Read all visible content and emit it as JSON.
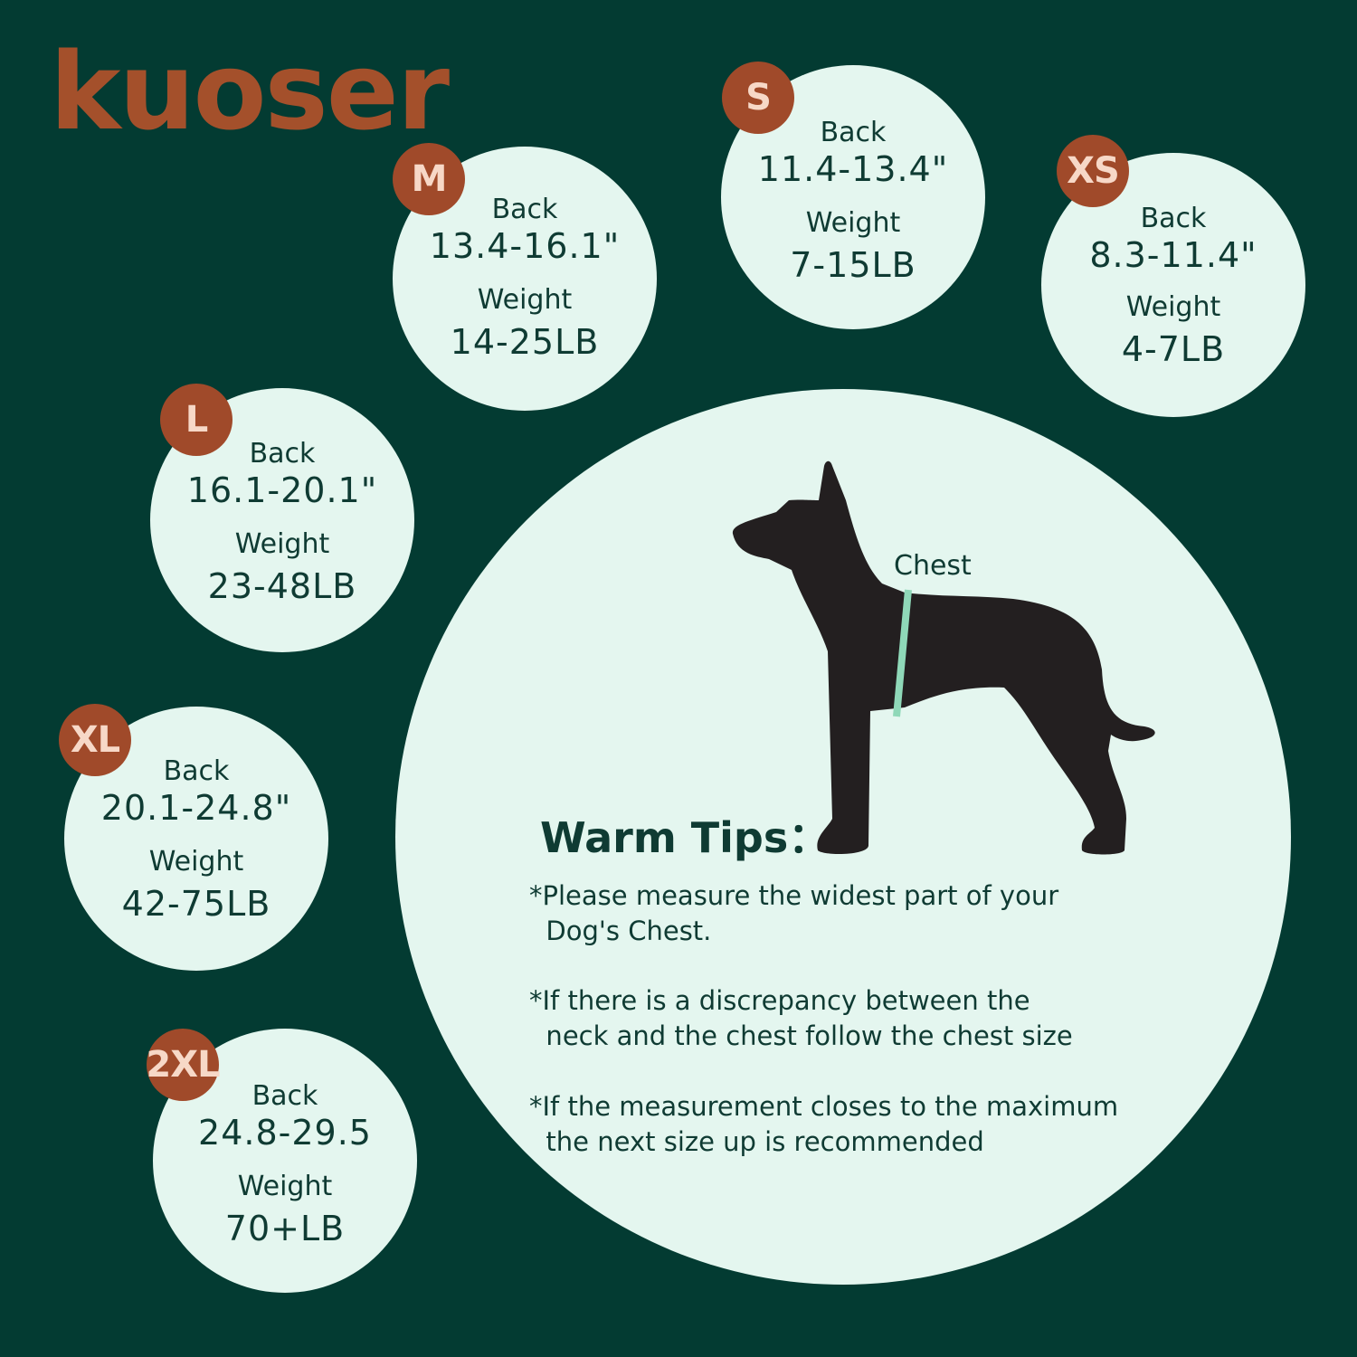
{
  "brand": {
    "logo_text": "kuoser",
    "color": "#a4502b"
  },
  "colors": {
    "background": "#033b32",
    "circle": "#e4f6ef",
    "badge": "#a04a2a",
    "text": "#0f3b33"
  },
  "labels": {
    "back": "Back",
    "weight": "Weight"
  },
  "sizes": [
    {
      "size": "XS",
      "back": "8.3-11.4\"",
      "weight": "4-7LB"
    },
    {
      "size": "S",
      "back": "11.4-13.4\"",
      "weight": "7-15LB"
    },
    {
      "size": "M",
      "back": "13.4-16.1\"",
      "weight": "14-25LB"
    },
    {
      "size": "L",
      "back": "16.1-20.1\"",
      "weight": "23-48LB"
    },
    {
      "size": "XL",
      "back": "20.1-24.8\"",
      "weight": "42-75LB"
    },
    {
      "size": "2XL",
      "back": "24.8-29.5",
      "weight": "70+LB"
    }
  ],
  "illustration": {
    "chest_label": "Chest",
    "icon": "dog-silhouette-icon"
  },
  "tips": {
    "title": "Warm Tips：",
    "items": [
      "*Please measure the widest part of your\n  Dog's Chest.",
      "*If there is a discrepancy between the\n  neck and the chest follow the chest size",
      "*If the measurement closes to the maximum\n  the next size up is recommended"
    ]
  }
}
